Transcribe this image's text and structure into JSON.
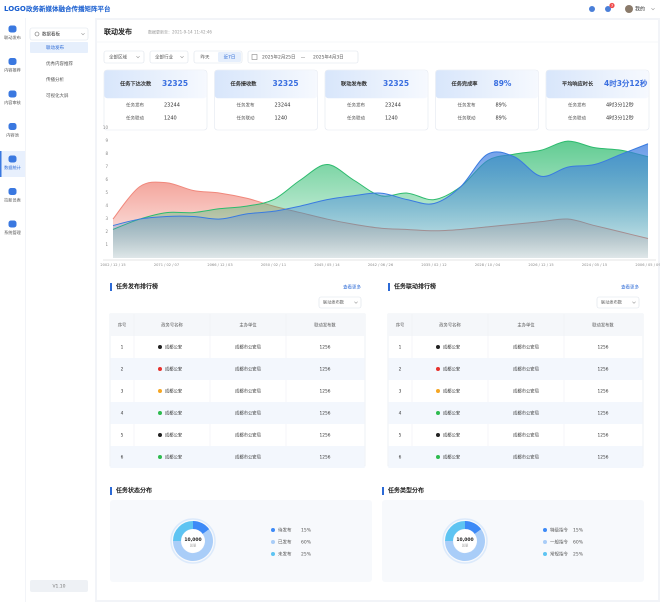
{
  "header": {
    "logo": "LOGO",
    "title": "政务新媒体融合传播矩阵平台",
    "badge": "3",
    "user": "我的"
  },
  "sidebar": [
    "联动发布",
    "内容推荐",
    "内容审核",
    "内容池",
    "数据统计",
    "拉新员表",
    "系统管理"
  ],
  "submenu": {
    "title": "数据看板",
    "items": [
      "联动发布",
      "优秀内容推荐",
      "传播分析",
      "可视化大屏"
    ],
    "version": "V1.10"
  },
  "page": {
    "title": "联动发布",
    "updated": "数据更新至：2021-9-14 11:42:46"
  },
  "filters": {
    "region": "全部区域",
    "industry": "全部行业",
    "yesterday": "昨天",
    "week": "近7日",
    "start": "2025年2月25日",
    "sep": "—",
    "end": "2025年4月3日"
  },
  "kpis": [
    {
      "title": "任务下达次数",
      "value": "32325",
      "rows": [
        [
          "任务发布",
          "23244"
        ],
        [
          "任务联动",
          "1240"
        ]
      ]
    },
    {
      "title": "任务接收数",
      "value": "32325",
      "rows": [
        [
          "任务发布",
          "23244"
        ],
        [
          "任务联动",
          "1240"
        ]
      ]
    },
    {
      "title": "联动发布数",
      "value": "32325",
      "rows": [
        [
          "任务发布",
          "23244"
        ],
        [
          "任务联动",
          "1240"
        ]
      ]
    },
    {
      "title": "任务完成率",
      "value": "89%",
      "rows": [
        [
          "任务发布",
          "89%"
        ],
        [
          "任务联动",
          "89%"
        ]
      ]
    },
    {
      "title": "平均响应时长",
      "value": "4时3分12秒",
      "rows": [
        [
          "任务发布",
          "4时3分12秒"
        ],
        [
          "任务联动",
          "4时3分12秒"
        ]
      ]
    }
  ],
  "rankings": [
    {
      "title": "任务发布排行榜",
      "more": "查看更多",
      "sort": "联动发布数",
      "columns": [
        "序号",
        "政务号名称",
        "主办单位",
        "联动发布数"
      ],
      "rows": [
        [
          "1",
          "成都公安",
          "成都市公安局",
          "1256"
        ],
        [
          "2",
          "成都公安",
          "成都市公安局",
          "1256"
        ],
        [
          "3",
          "成都公安",
          "成都市公安局",
          "1256"
        ],
        [
          "4",
          "成都公安",
          "成都市公安局",
          "1256"
        ],
        [
          "5",
          "成都公安",
          "成都市公安局",
          "1256"
        ],
        [
          "6",
          "成都公安",
          "成都市公安局",
          "1256"
        ]
      ]
    },
    {
      "title": "任务联动排行榜",
      "more": "查看更多",
      "sort": "联动发布数",
      "columns": [
        "序号",
        "政务号名称",
        "主办单位",
        "联动发布数"
      ],
      "rows": [
        [
          "1",
          "成都公安",
          "成都市公安局",
          "1256"
        ],
        [
          "2",
          "成都公安",
          "成都市公安局",
          "1256"
        ],
        [
          "3",
          "成都公安",
          "成都市公安局",
          "1256"
        ],
        [
          "4",
          "成都公安",
          "成都市公安局",
          "1256"
        ],
        [
          "5",
          "成都公安",
          "成都市公安局",
          "1256"
        ],
        [
          "6",
          "成都公安",
          "成都市公安局",
          "1256"
        ]
      ]
    }
  ],
  "chart_data": [
    {
      "type": "area",
      "categories": [
        "2002 / 12 / 15",
        null,
        "2071 / 02 / 07",
        null,
        "2066 / 12 / 03",
        null,
        "2050 / 02 / 11",
        null,
        "2045 / 05 / 14",
        null,
        "2042 / 06 / 26",
        null,
        "2035 / 02 / 12",
        null,
        "2028 / 10 / 04",
        null,
        "2026 / 12 / 15",
        null,
        "2024 / 05 / 15",
        null,
        "2006 / 05 / 09"
      ],
      "series": [
        {
          "color": "#f0887c",
          "values": [
            3,
            5.5,
            5.8,
            5.2,
            5,
            4.6,
            4,
            3.5,
            3,
            2.6,
            2.3,
            2.2,
            2.1,
            2.2,
            2.4,
            2.6,
            2.8,
            3,
            2.5,
            2,
            1.5
          ]
        },
        {
          "color": "#2dbb6e",
          "values": [
            2.2,
            3,
            3.5,
            3.5,
            3.8,
            4,
            4.5,
            6,
            7.2,
            6,
            4.8,
            5,
            4.5,
            5.5,
            7.5,
            8,
            8.3,
            9,
            8.5,
            8.3,
            7.8
          ]
        },
        {
          "color": "#3a7be0",
          "values": [
            2.5,
            3,
            3.2,
            3.2,
            3,
            3.4,
            3.6,
            4,
            4.5,
            4.8,
            5,
            4.5,
            4.2,
            5.5,
            8,
            7.8,
            6.3,
            7,
            7.2,
            8,
            8.8
          ]
        }
      ],
      "ylim": [
        0,
        10
      ],
      "yticks": [
        1,
        2,
        3,
        4,
        5,
        6,
        7,
        8,
        9,
        10
      ],
      "grid": false
    },
    {
      "type": "pie",
      "title": "任务状态分布",
      "categories": [
        "待发布",
        "已发布",
        "未发布"
      ],
      "values": [
        15,
        60,
        25
      ],
      "value_labels": [
        "15%",
        "60%",
        "25%"
      ],
      "colors": [
        "#3d8af7",
        "#a9cdf8",
        "#5ec4f2"
      ],
      "center_label": "10,000",
      "center_sublabel": "总量"
    },
    {
      "type": "pie",
      "title": "任务类型分布",
      "categories": [
        "特级指令",
        "一般指令",
        "常规指令"
      ],
      "values": [
        15,
        60,
        25
      ],
      "value_labels": [
        "15%",
        "60%",
        "25%"
      ],
      "colors": [
        "#3d8af7",
        "#a9cdf8",
        "#5ec4f2"
      ],
      "center_label": "10,000",
      "center_sublabel": "总量"
    }
  ]
}
